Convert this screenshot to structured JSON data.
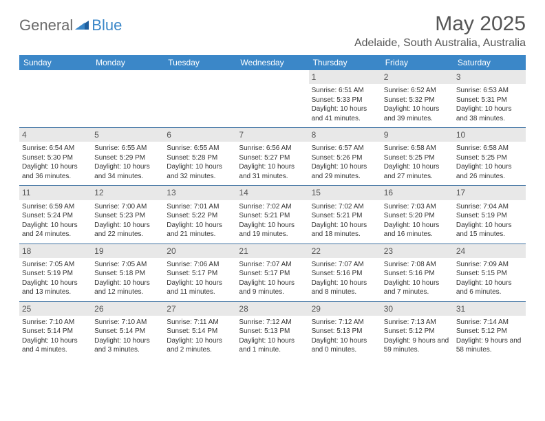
{
  "logo": {
    "text1": "General",
    "text2": "Blue"
  },
  "title": "May 2025",
  "location": "Adelaide, South Australia, Australia",
  "colors": {
    "header_bg": "#3b87c8",
    "header_text": "#ffffff",
    "daynum_bg": "#e8e8e8",
    "week_border": "#3b6fa0",
    "body_text": "#333333",
    "title_text": "#555555"
  },
  "day_names": [
    "Sunday",
    "Monday",
    "Tuesday",
    "Wednesday",
    "Thursday",
    "Friday",
    "Saturday"
  ],
  "weeks": [
    [
      {
        "n": "",
        "sr": "",
        "ss": "",
        "dl": ""
      },
      {
        "n": "",
        "sr": "",
        "ss": "",
        "dl": ""
      },
      {
        "n": "",
        "sr": "",
        "ss": "",
        "dl": ""
      },
      {
        "n": "",
        "sr": "",
        "ss": "",
        "dl": ""
      },
      {
        "n": "1",
        "sr": "Sunrise: 6:51 AM",
        "ss": "Sunset: 5:33 PM",
        "dl": "Daylight: 10 hours and 41 minutes."
      },
      {
        "n": "2",
        "sr": "Sunrise: 6:52 AM",
        "ss": "Sunset: 5:32 PM",
        "dl": "Daylight: 10 hours and 39 minutes."
      },
      {
        "n": "3",
        "sr": "Sunrise: 6:53 AM",
        "ss": "Sunset: 5:31 PM",
        "dl": "Daylight: 10 hours and 38 minutes."
      }
    ],
    [
      {
        "n": "4",
        "sr": "Sunrise: 6:54 AM",
        "ss": "Sunset: 5:30 PM",
        "dl": "Daylight: 10 hours and 36 minutes."
      },
      {
        "n": "5",
        "sr": "Sunrise: 6:55 AM",
        "ss": "Sunset: 5:29 PM",
        "dl": "Daylight: 10 hours and 34 minutes."
      },
      {
        "n": "6",
        "sr": "Sunrise: 6:55 AM",
        "ss": "Sunset: 5:28 PM",
        "dl": "Daylight: 10 hours and 32 minutes."
      },
      {
        "n": "7",
        "sr": "Sunrise: 6:56 AM",
        "ss": "Sunset: 5:27 PM",
        "dl": "Daylight: 10 hours and 31 minutes."
      },
      {
        "n": "8",
        "sr": "Sunrise: 6:57 AM",
        "ss": "Sunset: 5:26 PM",
        "dl": "Daylight: 10 hours and 29 minutes."
      },
      {
        "n": "9",
        "sr": "Sunrise: 6:58 AM",
        "ss": "Sunset: 5:25 PM",
        "dl": "Daylight: 10 hours and 27 minutes."
      },
      {
        "n": "10",
        "sr": "Sunrise: 6:58 AM",
        "ss": "Sunset: 5:25 PM",
        "dl": "Daylight: 10 hours and 26 minutes."
      }
    ],
    [
      {
        "n": "11",
        "sr": "Sunrise: 6:59 AM",
        "ss": "Sunset: 5:24 PM",
        "dl": "Daylight: 10 hours and 24 minutes."
      },
      {
        "n": "12",
        "sr": "Sunrise: 7:00 AM",
        "ss": "Sunset: 5:23 PM",
        "dl": "Daylight: 10 hours and 22 minutes."
      },
      {
        "n": "13",
        "sr": "Sunrise: 7:01 AM",
        "ss": "Sunset: 5:22 PM",
        "dl": "Daylight: 10 hours and 21 minutes."
      },
      {
        "n": "14",
        "sr": "Sunrise: 7:02 AM",
        "ss": "Sunset: 5:21 PM",
        "dl": "Daylight: 10 hours and 19 minutes."
      },
      {
        "n": "15",
        "sr": "Sunrise: 7:02 AM",
        "ss": "Sunset: 5:21 PM",
        "dl": "Daylight: 10 hours and 18 minutes."
      },
      {
        "n": "16",
        "sr": "Sunrise: 7:03 AM",
        "ss": "Sunset: 5:20 PM",
        "dl": "Daylight: 10 hours and 16 minutes."
      },
      {
        "n": "17",
        "sr": "Sunrise: 7:04 AM",
        "ss": "Sunset: 5:19 PM",
        "dl": "Daylight: 10 hours and 15 minutes."
      }
    ],
    [
      {
        "n": "18",
        "sr": "Sunrise: 7:05 AM",
        "ss": "Sunset: 5:19 PM",
        "dl": "Daylight: 10 hours and 13 minutes."
      },
      {
        "n": "19",
        "sr": "Sunrise: 7:05 AM",
        "ss": "Sunset: 5:18 PM",
        "dl": "Daylight: 10 hours and 12 minutes."
      },
      {
        "n": "20",
        "sr": "Sunrise: 7:06 AM",
        "ss": "Sunset: 5:17 PM",
        "dl": "Daylight: 10 hours and 11 minutes."
      },
      {
        "n": "21",
        "sr": "Sunrise: 7:07 AM",
        "ss": "Sunset: 5:17 PM",
        "dl": "Daylight: 10 hours and 9 minutes."
      },
      {
        "n": "22",
        "sr": "Sunrise: 7:07 AM",
        "ss": "Sunset: 5:16 PM",
        "dl": "Daylight: 10 hours and 8 minutes."
      },
      {
        "n": "23",
        "sr": "Sunrise: 7:08 AM",
        "ss": "Sunset: 5:16 PM",
        "dl": "Daylight: 10 hours and 7 minutes."
      },
      {
        "n": "24",
        "sr": "Sunrise: 7:09 AM",
        "ss": "Sunset: 5:15 PM",
        "dl": "Daylight: 10 hours and 6 minutes."
      }
    ],
    [
      {
        "n": "25",
        "sr": "Sunrise: 7:10 AM",
        "ss": "Sunset: 5:14 PM",
        "dl": "Daylight: 10 hours and 4 minutes."
      },
      {
        "n": "26",
        "sr": "Sunrise: 7:10 AM",
        "ss": "Sunset: 5:14 PM",
        "dl": "Daylight: 10 hours and 3 minutes."
      },
      {
        "n": "27",
        "sr": "Sunrise: 7:11 AM",
        "ss": "Sunset: 5:14 PM",
        "dl": "Daylight: 10 hours and 2 minutes."
      },
      {
        "n": "28",
        "sr": "Sunrise: 7:12 AM",
        "ss": "Sunset: 5:13 PM",
        "dl": "Daylight: 10 hours and 1 minute."
      },
      {
        "n": "29",
        "sr": "Sunrise: 7:12 AM",
        "ss": "Sunset: 5:13 PM",
        "dl": "Daylight: 10 hours and 0 minutes."
      },
      {
        "n": "30",
        "sr": "Sunrise: 7:13 AM",
        "ss": "Sunset: 5:12 PM",
        "dl": "Daylight: 9 hours and 59 minutes."
      },
      {
        "n": "31",
        "sr": "Sunrise: 7:14 AM",
        "ss": "Sunset: 5:12 PM",
        "dl": "Daylight: 9 hours and 58 minutes."
      }
    ]
  ]
}
